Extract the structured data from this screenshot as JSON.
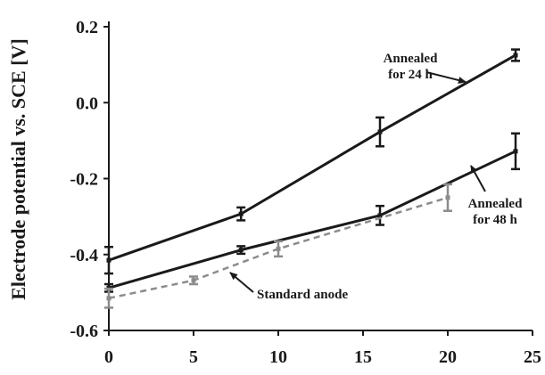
{
  "chart_data": {
    "type": "line",
    "title": "",
    "xlabel": "",
    "ylabel": "Electrode potential vs. SCE [V]",
    "xlim": [
      0,
      25
    ],
    "ylim": [
      -0.6,
      0.2
    ],
    "xticks": [
      "0",
      "5",
      "10",
      "15",
      "20",
      "25"
    ],
    "yticks": [
      "0.2",
      "0.0",
      "-0.2",
      "-0.4",
      "-0.6"
    ],
    "grid": false,
    "colors": {
      "annealed_24h": "#1a1a1a",
      "annealed_48h": "#1a1a1a",
      "standard": "#8c8c8c",
      "text": "#1a1a1a"
    },
    "series": [
      {
        "key": "annealed_24h",
        "style": "solid",
        "x": [
          0,
          7.8,
          16,
          24
        ],
        "y": [
          -0.415,
          -0.293,
          -0.077,
          0.125
        ],
        "err": [
          0.035,
          0.017,
          0.038,
          0.015
        ]
      },
      {
        "key": "annealed_48h",
        "style": "solid",
        "x": [
          0,
          7.8,
          16,
          24
        ],
        "y": [
          -0.488,
          -0.388,
          -0.297,
          -0.128
        ],
        "err": [
          0.01,
          0.01,
          0.025,
          0.047
        ]
      },
      {
        "key": "standard",
        "style": "dashed",
        "x": [
          0,
          5,
          10,
          20
        ],
        "y": [
          -0.515,
          -0.468,
          -0.385,
          -0.25
        ],
        "err": [
          0.025,
          0.01,
          0.02,
          0.035
        ]
      }
    ],
    "annotations": [
      {
        "lines": [
          "Annealed",
          "for 24 h"
        ],
        "target_series": "annealed_24h",
        "color_key": "text"
      },
      {
        "lines": [
          "Annealed",
          "for 48 h"
        ],
        "target_series": "annealed_48h",
        "color_key": "text"
      },
      {
        "lines": [
          "Standard anode"
        ],
        "target_series": "standard",
        "color_key": "text"
      }
    ]
  }
}
